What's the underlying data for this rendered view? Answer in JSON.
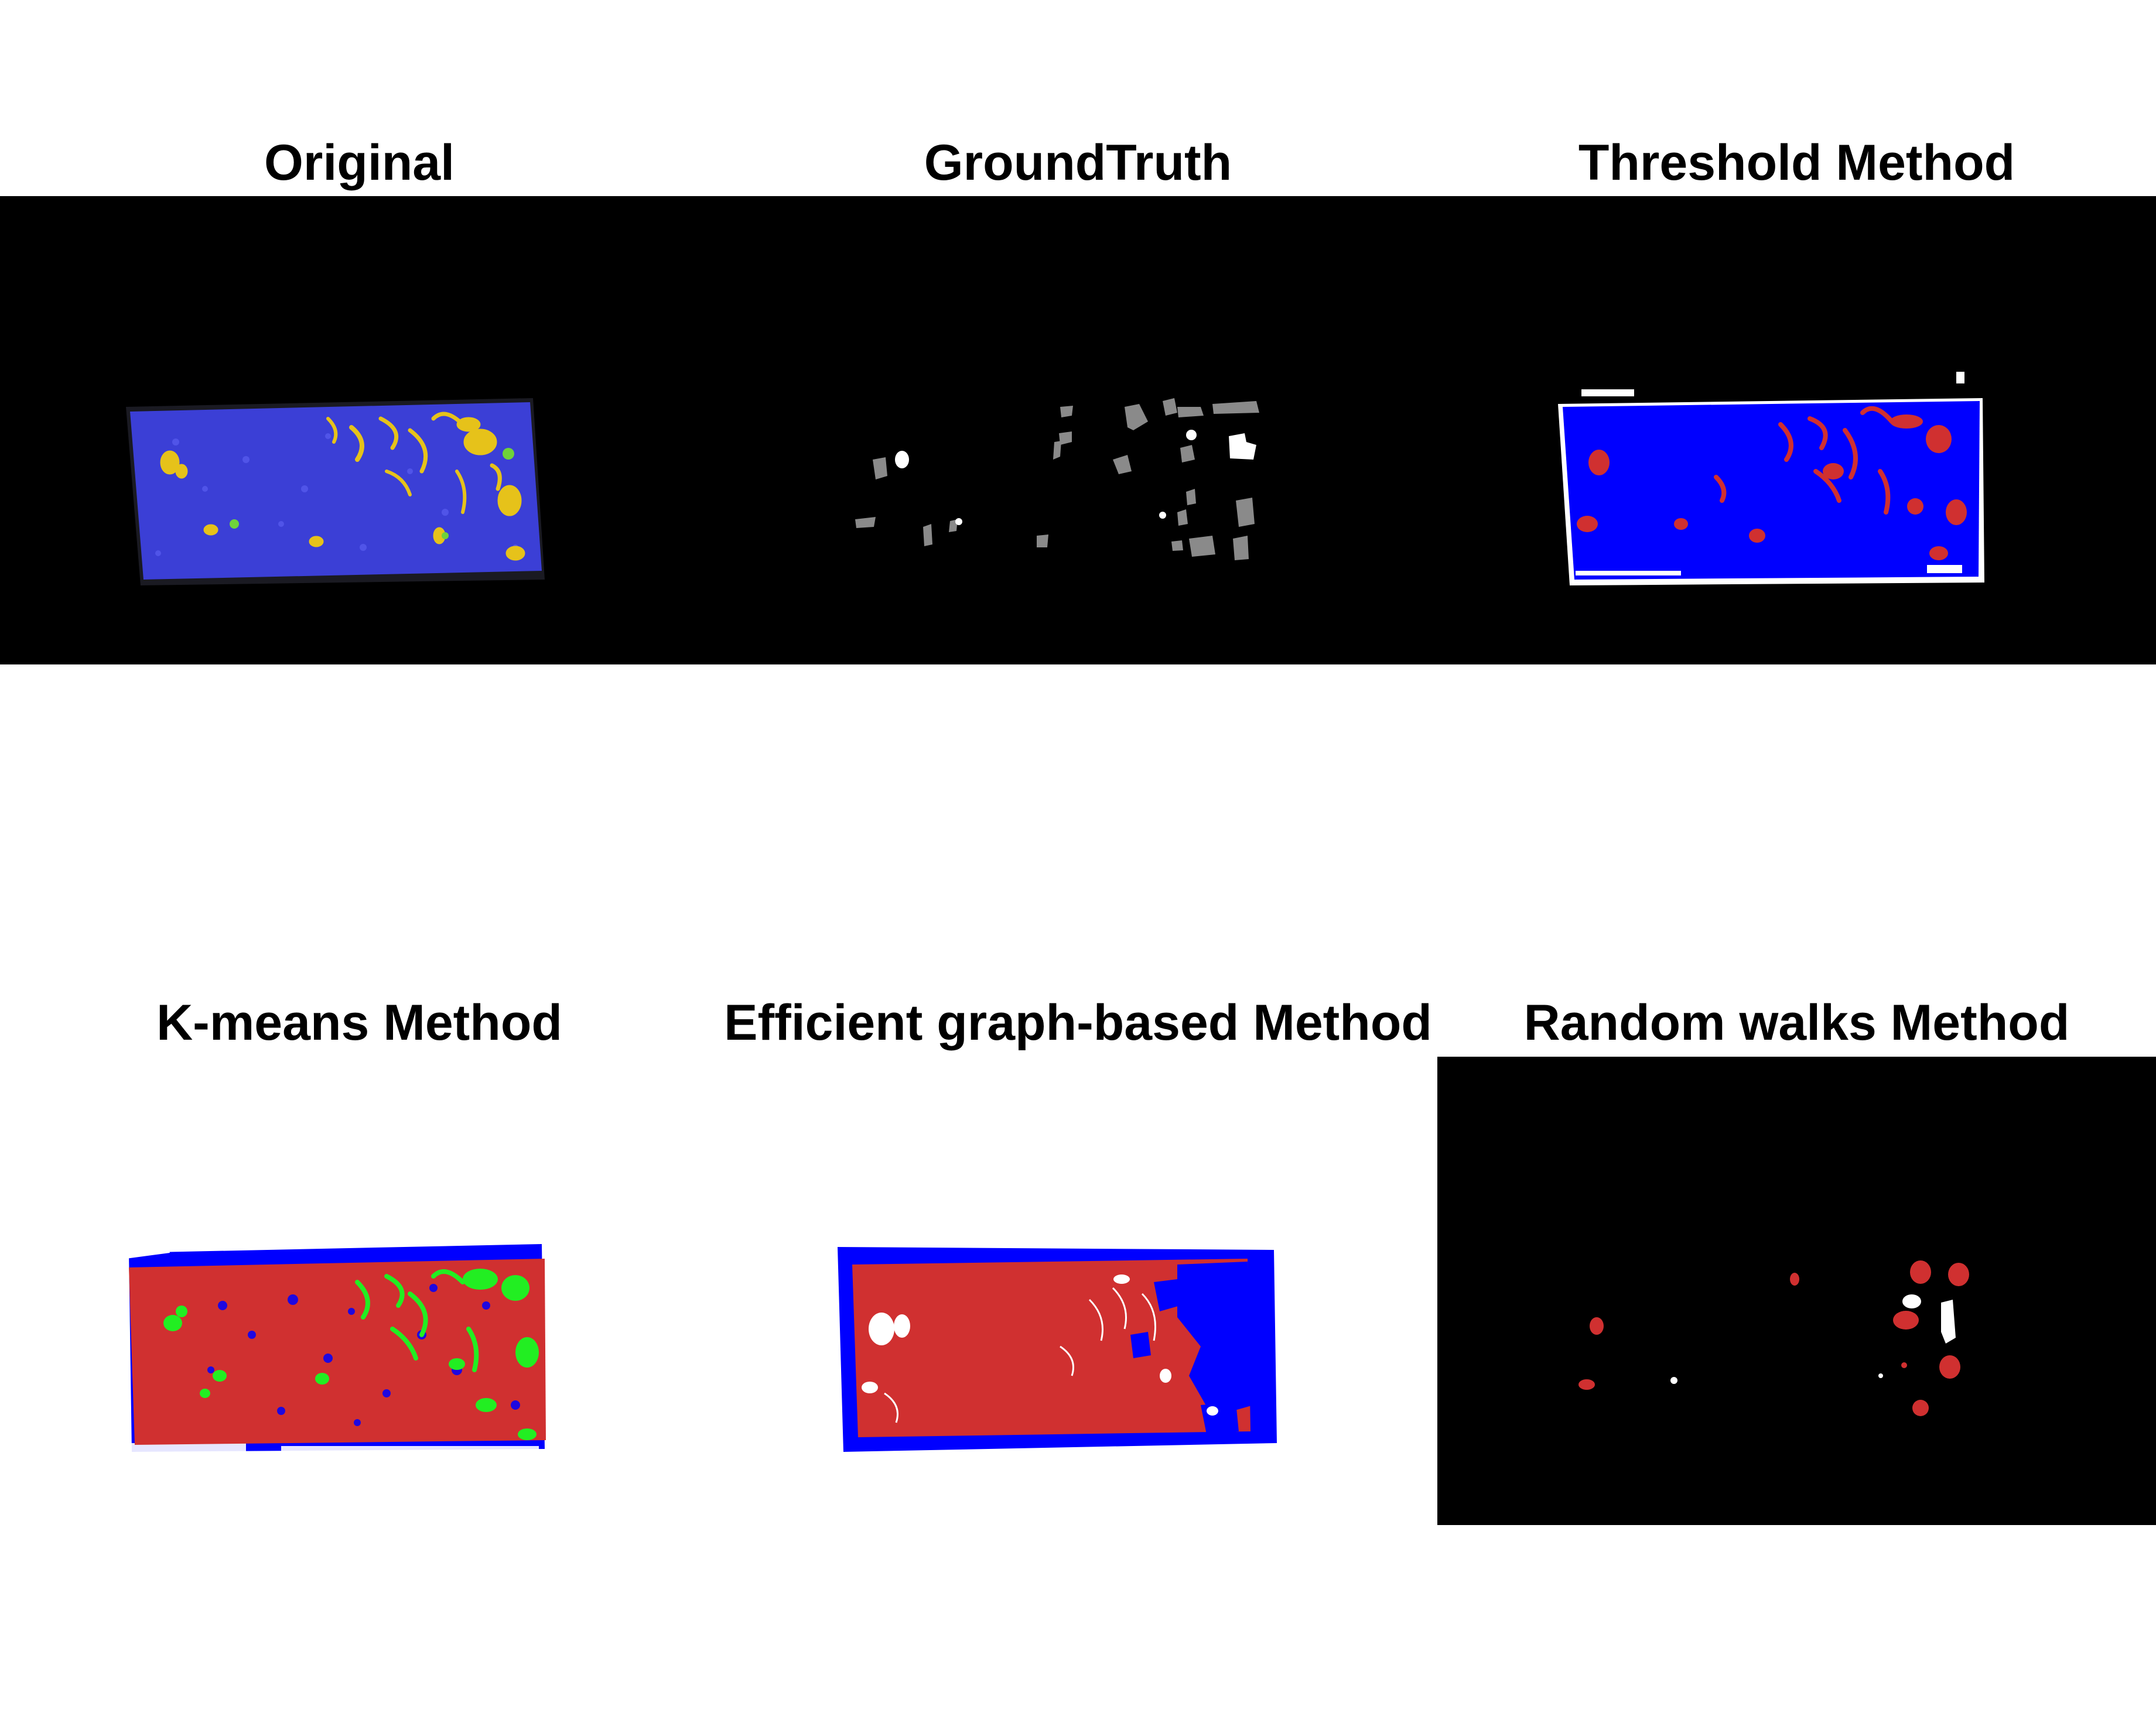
{
  "figure": {
    "panels": [
      {
        "id": "original",
        "title": "Original",
        "background": "#000000",
        "description_icon": "image-original",
        "colors": {
          "tissue": "#3b3fd6",
          "highlight": "#e6c21a",
          "dim": "#2a2a55"
        }
      },
      {
        "id": "groundtruth",
        "title": "GroundTruth",
        "background": "#000000",
        "description_icon": "image-groundtruth",
        "colors": {
          "region_gray": "#8a8a8a",
          "region_white": "#ffffff"
        }
      },
      {
        "id": "threshold",
        "title": "Threshold Method",
        "background": "#000000",
        "description_icon": "image-threshold",
        "colors": {
          "background_class": "#0000ff",
          "foreground_class": "#d03030",
          "edge": "#ffffff"
        }
      },
      {
        "id": "kmeans",
        "title": "K-means Method",
        "background": "#ffffff",
        "description_icon": "image-kmeans",
        "colors": {
          "class_1": "#d03030",
          "class_2": "#0000ff",
          "class_3": "#22ee22"
        }
      },
      {
        "id": "graph",
        "title": "Efficient graph-based Method",
        "background": "#ffffff",
        "description_icon": "image-graph-based",
        "colors": {
          "class_1": "#d03030",
          "class_2": "#0000ff",
          "holes": "#ffffff"
        }
      },
      {
        "id": "randomwalks",
        "title": "Random walks Method",
        "background": "#000000",
        "description_icon": "image-random-walks",
        "colors": {
          "segment_red": "#d03030",
          "segment_white": "#ffffff"
        }
      }
    ]
  }
}
